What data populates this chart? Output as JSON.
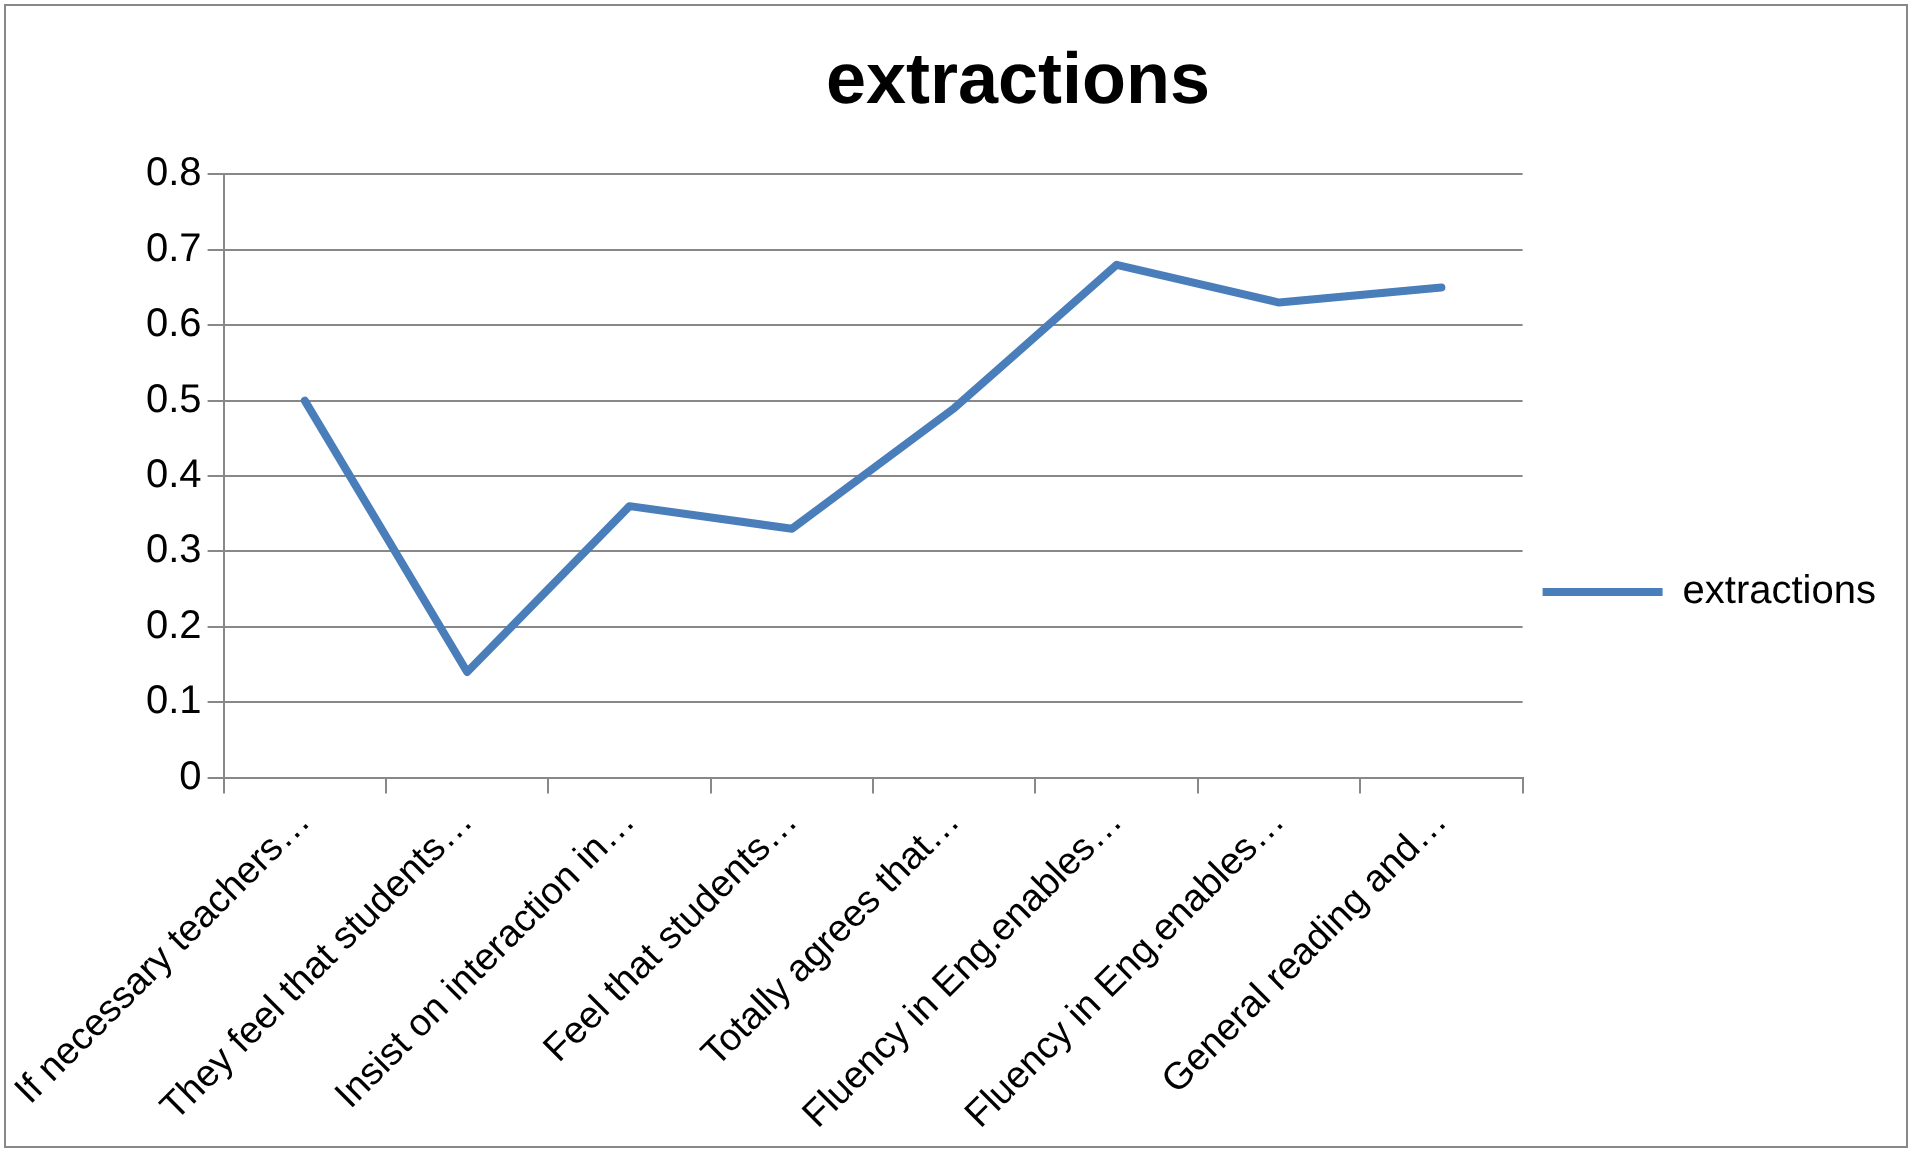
{
  "chart_data": {
    "type": "line",
    "title": "extractions",
    "categories": [
      "If necessary teachers…",
      "They feel that students…",
      "Insist on interaction in…",
      "Feel that students…",
      "Totally agrees that…",
      "Fluency in Eng.enables…",
      "Fluency in Eng.enables…",
      "General reading and…"
    ],
    "series": [
      {
        "name": "extractions",
        "color": "#4a7ebb",
        "values": [
          0.5,
          0.14,
          0.36,
          0.33,
          0.49,
          0.68,
          0.63,
          0.65
        ]
      }
    ],
    "ylim": [
      0,
      0.8
    ],
    "yticks": [
      0,
      0.1,
      0.2,
      0.3,
      0.4,
      0.5,
      0.6,
      0.7,
      0.8
    ],
    "grid": "y",
    "legend": "right",
    "marker": "none",
    "line_style": "solid"
  }
}
